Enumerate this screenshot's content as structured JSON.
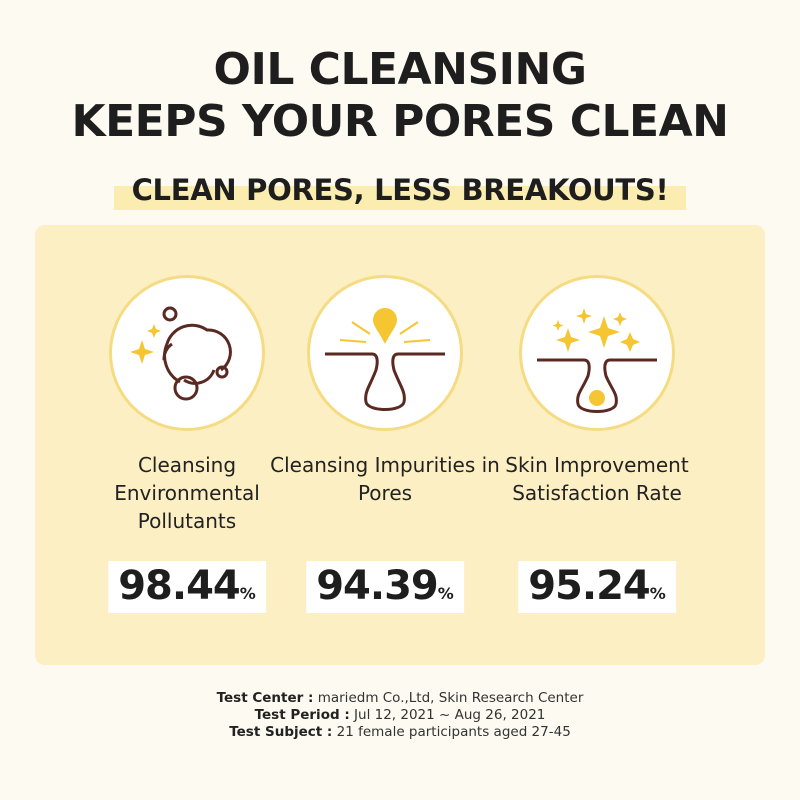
{
  "headline": {
    "line1": "OIL CLEANSING",
    "line2": "KEEPS YOUR PORES CLEAN"
  },
  "subheadline": "CLEAN PORES, LESS BREAKOUTS!",
  "colors": {
    "background": "#fdfaf1",
    "panel": "#fcefc3",
    "accent": "#f5c631",
    "line": "#5a2a22"
  },
  "stats": [
    {
      "icon": "bubbles-sparkle-icon",
      "label": "Cleansing Environmental Pollutants",
      "value": "98.44",
      "unit": "%"
    },
    {
      "icon": "pore-impurities-out-icon",
      "label": "Cleansing Impurities in Pores",
      "value": "94.39",
      "unit": "%"
    },
    {
      "icon": "pore-sparkle-icon",
      "label": "Skin Improvement Satisfaction Rate",
      "value": "95.24",
      "unit": "%"
    }
  ],
  "footer": [
    {
      "key": "Test Center :",
      "value": " mariedm Co.,Ltd, Skin Research Center"
    },
    {
      "key": "Test Period :",
      "value": " Jul 12, 2021 ~ Aug 26, 2021"
    },
    {
      "key": "Test Subject :",
      "value": " 21 female participants aged 27-45"
    }
  ]
}
